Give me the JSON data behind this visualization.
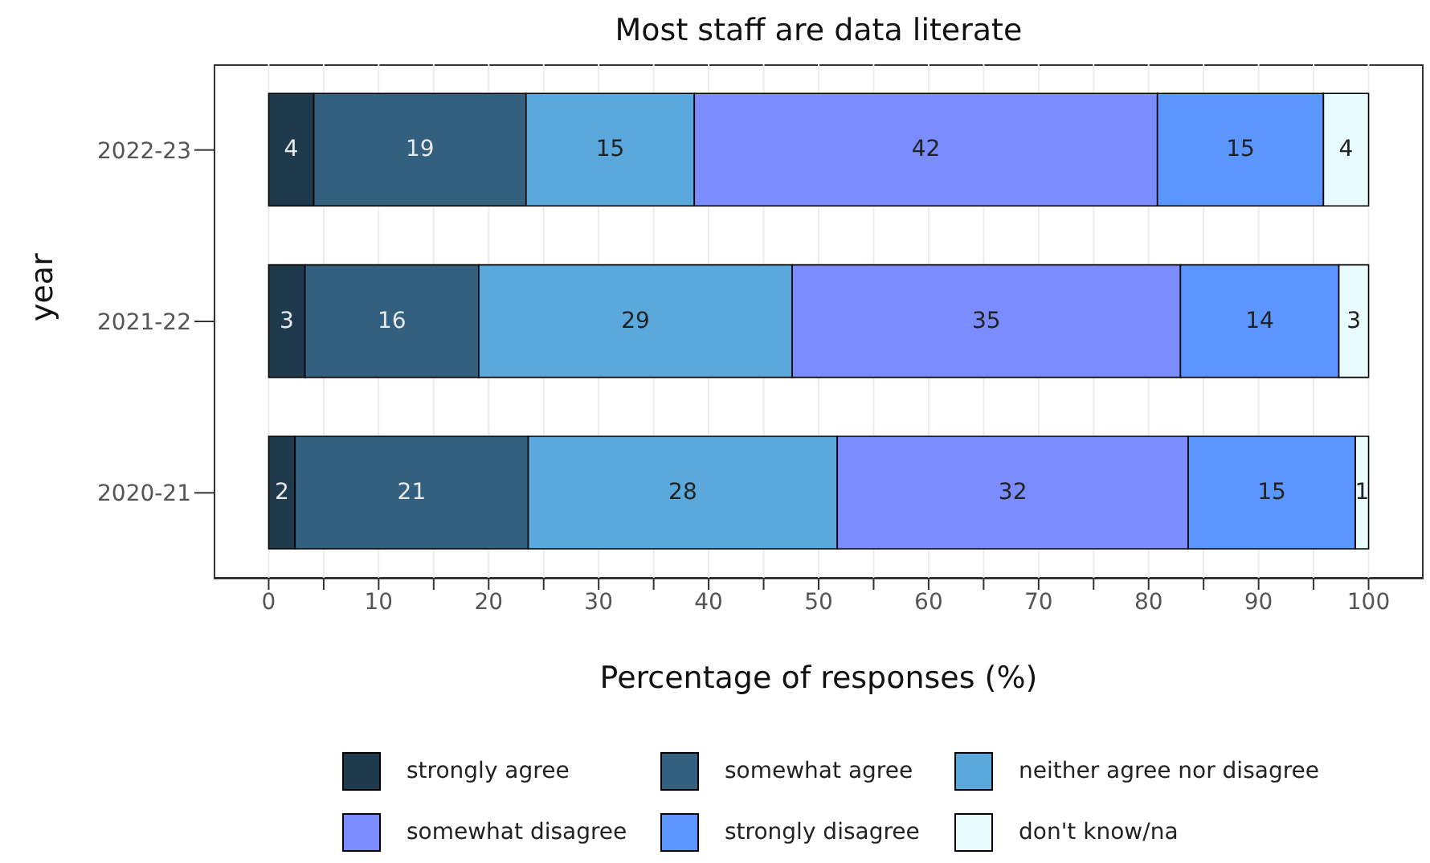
{
  "chart_data": {
    "type": "bar",
    "orientation": "horizontal",
    "stacked": true,
    "title": "Most staff are data literate",
    "xlabel": "Percentage of responses (%)",
    "ylabel": "year",
    "categories": [
      "2022-23",
      "2021-22",
      "2020-21"
    ],
    "series": [
      {
        "name": "strongly agree",
        "color": "#1f3a4d",
        "values": [
          4.1,
          3.3,
          2.4
        ],
        "value_labels": [
          "4",
          "3",
          "2"
        ]
      },
      {
        "name": "somewhat agree",
        "color": "#33607f",
        "values": [
          19.3,
          15.8,
          21.2
        ],
        "value_labels": [
          "19",
          "16",
          "21"
        ]
      },
      {
        "name": "neither agree nor disagree",
        "color": "#5aa8dc",
        "values": [
          15.3,
          28.5,
          28.1
        ],
        "value_labels": [
          "15",
          "29",
          "28"
        ]
      },
      {
        "name": "somewhat disagree",
        "color": "#7b8cff",
        "values": [
          42.1,
          35.3,
          31.9
        ],
        "value_labels": [
          "42",
          "35",
          "32"
        ]
      },
      {
        "name": "strongly disagree",
        "color": "#5b96ff",
        "values": [
          15.1,
          14.4,
          15.2
        ],
        "value_labels": [
          "15",
          "14",
          "15"
        ]
      },
      {
        "name": "don't know/na",
        "color": "#e8fbff",
        "values": [
          4.1,
          2.7,
          1.2
        ],
        "value_labels": [
          "4",
          "3",
          "1"
        ]
      }
    ],
    "xlim": [
      -5,
      105
    ],
    "xticks": [
      0,
      {
        "value": 5,
        "label": null
      },
      10,
      {
        "value": 15,
        "label": null
      },
      20,
      {
        "value": 25,
        "label": null
      },
      30,
      {
        "value": 35,
        "label": null
      },
      40,
      {
        "value": 45,
        "label": null
      },
      50,
      {
        "value": 55,
        "label": null
      },
      60,
      {
        "value": 65,
        "label": null
      },
      70,
      {
        "value": 75,
        "label": null
      },
      80,
      {
        "value": 85,
        "label": null
      },
      90,
      {
        "value": 95,
        "label": null
      },
      100
    ],
    "grid": "x",
    "legend": "bottom"
  }
}
